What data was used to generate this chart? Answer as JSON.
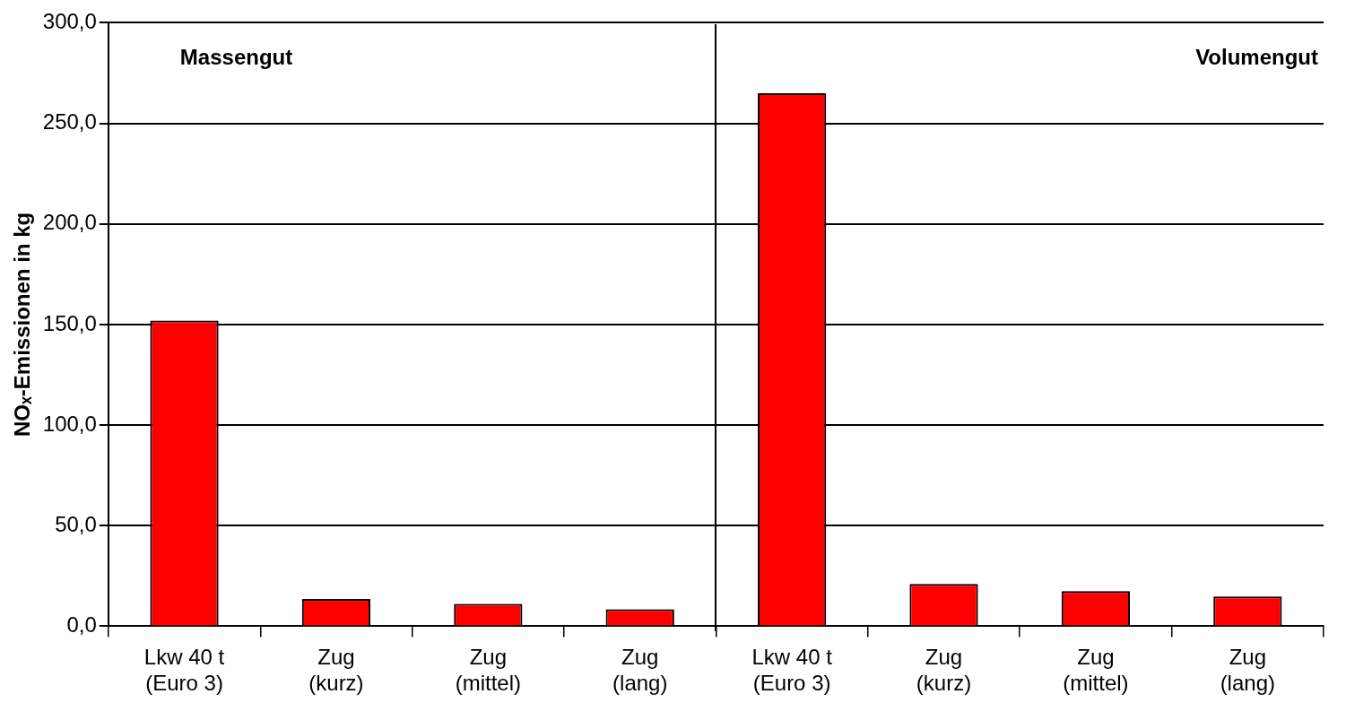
{
  "chart_data": {
    "type": "bar",
    "ylabel": "NOₓ-Emissionen in kg",
    "categories": [
      "Lkw 40 t\n(Euro 3)",
      "Zug\n(kurz)",
      "Zug\n(mittel)",
      "Zug\n(lang)",
      "Lkw 40 t\n(Euro 3)",
      "Zug\n(kurz)",
      "Zug\n(mittel)",
      "Zug\n(lang)"
    ],
    "values": [
      152,
      13.5,
      11.1,
      8.4,
      265,
      21.0,
      17.5,
      14.8
    ],
    "color": "#ff0000",
    "ylim": [
      0,
      300
    ],
    "yticks": [
      {
        "value": 0,
        "label": "0,0"
      },
      {
        "value": 50,
        "label": "50,0"
      },
      {
        "value": 100,
        "label": "100,0"
      },
      {
        "value": 150,
        "label": "150,0"
      },
      {
        "value": 200,
        "label": "200,0"
      },
      {
        "value": 250,
        "label": "250,0"
      },
      {
        "value": 300,
        "label": "300,0"
      }
    ],
    "grid": "y",
    "legend": false,
    "annotations": [
      "Massengut",
      "Volumengut"
    ]
  }
}
